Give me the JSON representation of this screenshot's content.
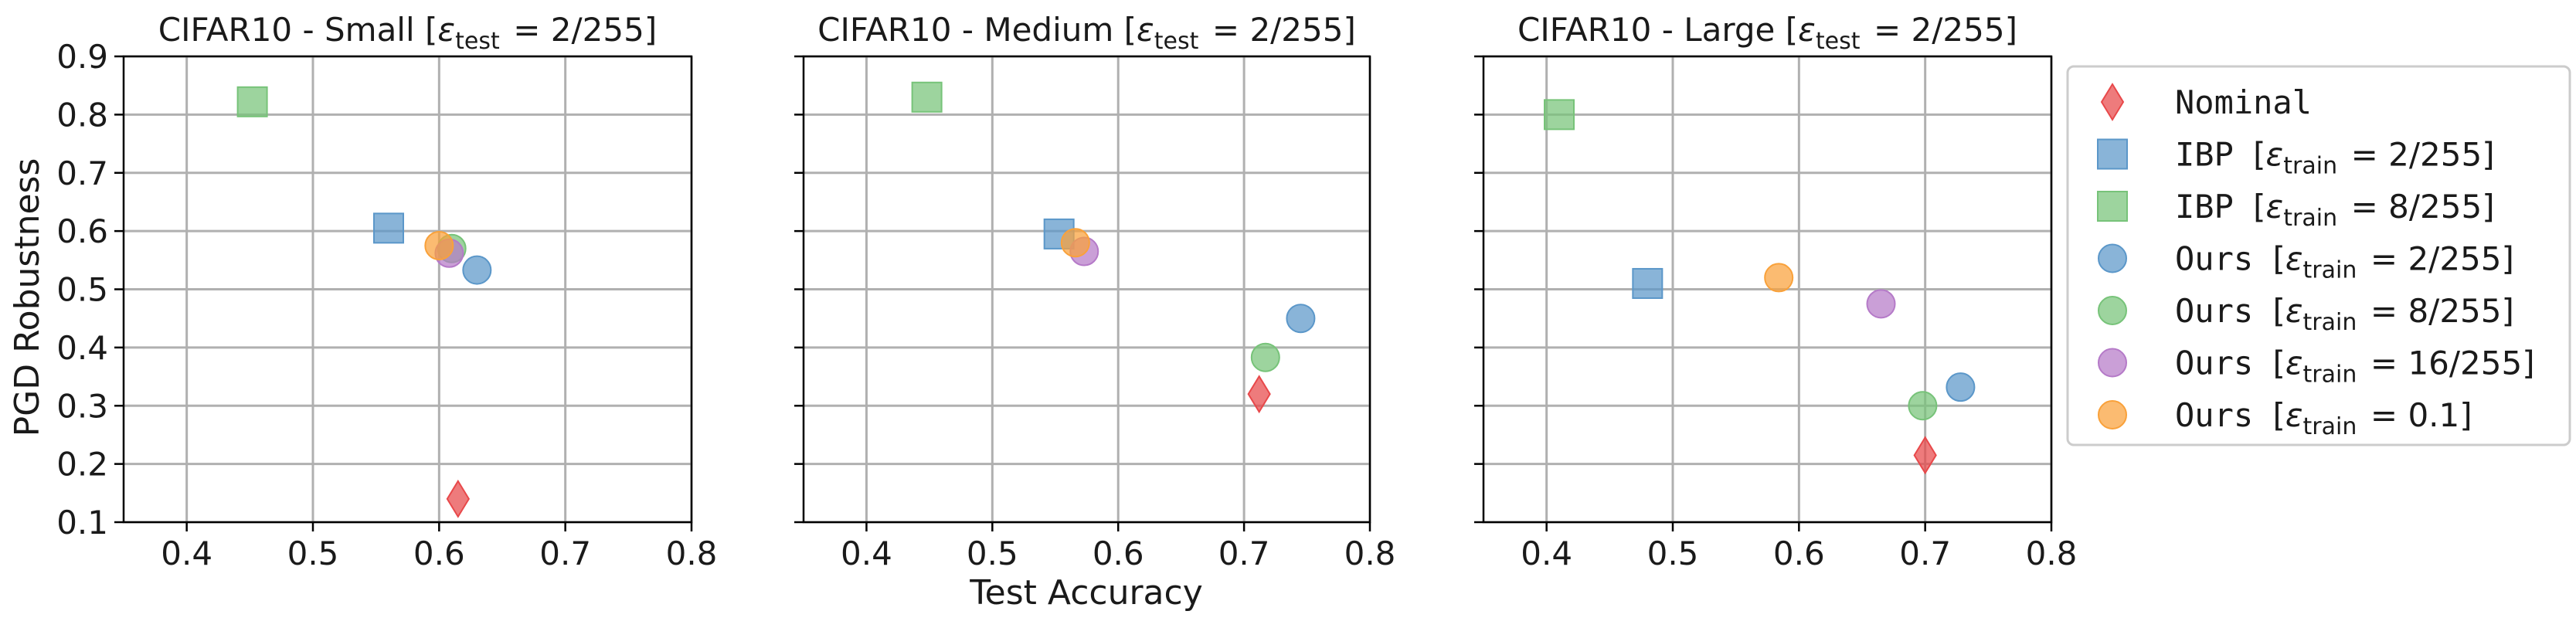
{
  "figure": {
    "ylabel": "PGD Robustness",
    "xlabel": "Test Accuracy"
  },
  "legend": {
    "placement": "right",
    "entries": [
      {
        "marker": "diamond",
        "color": "#e8484a",
        "prefix": "Nominal",
        "label": ""
      },
      {
        "marker": "square",
        "color": "#5b97c9",
        "prefix": "IBP  ",
        "label": "[ε_train = 2/255]"
      },
      {
        "marker": "square",
        "color": "#77c379",
        "prefix": "IBP  ",
        "label": "[ε_train = 8/255]"
      },
      {
        "marker": "circle",
        "color": "#5b97c9",
        "prefix": "Ours ",
        "label": "[ε_train = 2/255]"
      },
      {
        "marker": "circle",
        "color": "#77c379",
        "prefix": "Ours ",
        "label": "[ε_train = 8/255]"
      },
      {
        "marker": "circle",
        "color": "#b57ac8",
        "prefix": "Ours ",
        "label": "[ε_train = 16/255]"
      },
      {
        "marker": "circle",
        "color": "#f9a13a",
        "prefix": "Ours ",
        "label": "[ε_train = 0.1]"
      }
    ]
  },
  "chart_data": [
    {
      "type": "scatter",
      "title": "CIFAR10 - Small [ε_test = 2/255]",
      "xlabel": "",
      "ylabel": "PGD Robustness",
      "xlim": [
        0.35,
        0.8
      ],
      "ylim": [
        0.1,
        0.9
      ],
      "xticks": [
        "0.4",
        "0.5",
        "0.6",
        "0.7",
        "0.8"
      ],
      "yticks": [
        "0.1",
        "0.2",
        "0.3",
        "0.4",
        "0.5",
        "0.6",
        "0.7",
        "0.8",
        "0.9"
      ],
      "grid": true,
      "series": [
        {
          "name": "Nominal",
          "marker": "diamond",
          "color": "#e8484a",
          "x": 0.615,
          "y": 0.14
        },
        {
          "name": "IBP [ε_train = 2/255]",
          "marker": "square",
          "color": "#5b97c9",
          "x": 0.56,
          "y": 0.605
        },
        {
          "name": "IBP [ε_train = 8/255]",
          "marker": "square",
          "color": "#77c379",
          "x": 0.452,
          "y": 0.822
        },
        {
          "name": "Ours [ε_train = 2/255]",
          "marker": "circle",
          "color": "#5b97c9",
          "x": 0.63,
          "y": 0.533
        },
        {
          "name": "Ours [ε_train = 8/255]",
          "marker": "circle",
          "color": "#77c379",
          "x": 0.61,
          "y": 0.57
        },
        {
          "name": "Ours [ε_train = 16/255]",
          "marker": "circle",
          "color": "#b57ac8",
          "x": 0.608,
          "y": 0.562
        },
        {
          "name": "Ours [ε_train = 0.1]",
          "marker": "circle",
          "color": "#f9a13a",
          "x": 0.6,
          "y": 0.575
        }
      ]
    },
    {
      "type": "scatter",
      "title": "CIFAR10 - Medium [ε_test = 2/255]",
      "xlabel": "Test Accuracy",
      "ylabel": "",
      "xlim": [
        0.35,
        0.8
      ],
      "ylim": [
        0.1,
        0.9
      ],
      "xticks": [
        "0.4",
        "0.5",
        "0.6",
        "0.7",
        "0.8"
      ],
      "yticks": [],
      "grid": true,
      "series": [
        {
          "name": "Nominal",
          "marker": "diamond",
          "color": "#e8484a",
          "x": 0.712,
          "y": 0.32
        },
        {
          "name": "IBP [ε_train = 2/255]",
          "marker": "square",
          "color": "#5b97c9",
          "x": 0.553,
          "y": 0.595
        },
        {
          "name": "IBP [ε_train = 8/255]",
          "marker": "square",
          "color": "#77c379",
          "x": 0.448,
          "y": 0.83
        },
        {
          "name": "Ours [ε_train = 2/255]",
          "marker": "circle",
          "color": "#5b97c9",
          "x": 0.745,
          "y": 0.45
        },
        {
          "name": "Ours [ε_train = 8/255]",
          "marker": "circle",
          "color": "#77c379",
          "x": 0.717,
          "y": 0.383
        },
        {
          "name": "Ours [ε_train = 16/255]",
          "marker": "circle",
          "color": "#b57ac8",
          "x": 0.573,
          "y": 0.565
        },
        {
          "name": "Ours [ε_train = 0.1]",
          "marker": "circle",
          "color": "#f9a13a",
          "x": 0.566,
          "y": 0.58
        }
      ]
    },
    {
      "type": "scatter",
      "title": "CIFAR10 - Large [ε_test = 2/255]",
      "xlabel": "",
      "ylabel": "",
      "xlim": [
        0.35,
        0.8
      ],
      "ylim": [
        0.1,
        0.9
      ],
      "xticks": [
        "0.4",
        "0.5",
        "0.6",
        "0.7",
        "0.8"
      ],
      "yticks": [],
      "grid": true,
      "series": [
        {
          "name": "Nominal",
          "marker": "diamond",
          "color": "#e8484a",
          "x": 0.7,
          "y": 0.215
        },
        {
          "name": "IBP [ε_train = 2/255]",
          "marker": "square",
          "color": "#5b97c9",
          "x": 0.48,
          "y": 0.51
        },
        {
          "name": "IBP [ε_train = 8/255]",
          "marker": "square",
          "color": "#77c379",
          "x": 0.41,
          "y": 0.8
        },
        {
          "name": "Ours [ε_train = 2/255]",
          "marker": "circle",
          "color": "#5b97c9",
          "x": 0.728,
          "y": 0.332
        },
        {
          "name": "Ours [ε_train = 8/255]",
          "marker": "circle",
          "color": "#77c379",
          "x": 0.698,
          "y": 0.3
        },
        {
          "name": "Ours [ε_train = 16/255]",
          "marker": "circle",
          "color": "#b57ac8",
          "x": 0.665,
          "y": 0.475
        },
        {
          "name": "Ours [ε_train = 0.1]",
          "marker": "circle",
          "color": "#f9a13a",
          "x": 0.584,
          "y": 0.52
        }
      ]
    }
  ]
}
